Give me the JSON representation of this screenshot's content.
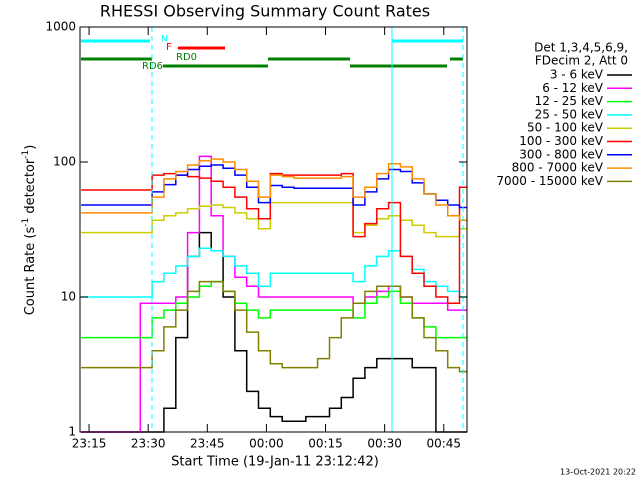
{
  "chart_data": {
    "type": "line",
    "title": "RHESSI Observing Summary Count Rates",
    "xlabel": "Start Time (19-Jan-11 23:12:42)",
    "ylabel": [
      "Count Rate (s",
      "-1",
      " detector",
      "-1",
      ")"
    ],
    "legend_header": [
      "Det 1,3,4,5,6,9,",
      "FDecim 2, Att 0"
    ],
    "flags": [
      "N",
      "F",
      "RD0",
      "RD6"
    ],
    "footer": "13-Oct-2021 20:22",
    "log_y": true,
    "xlim": [
      12.7,
      110.9
    ],
    "ylim": [
      1,
      1000
    ],
    "xticks": [
      {
        "value": 15,
        "label": "23:15"
      },
      {
        "value": 30,
        "label": "23:30"
      },
      {
        "value": 45,
        "label": "23:45"
      },
      {
        "value": 60,
        "label": "00:00"
      },
      {
        "value": 75,
        "label": "00:15"
      },
      {
        "value": 90,
        "label": "00:30"
      },
      {
        "value": 105,
        "label": "00:45"
      }
    ],
    "yticks": [
      1,
      10,
      100,
      1000
    ],
    "x": [
      13,
      16,
      19,
      22,
      25,
      28,
      31,
      34,
      37,
      40,
      43,
      46,
      49,
      52,
      55,
      58,
      61,
      64,
      67,
      70,
      73,
      76,
      79,
      82,
      85,
      88,
      91,
      94,
      97,
      100,
      103,
      106,
      109
    ],
    "series": [
      {
        "name": "3 - 6 keV",
        "color": "#000000",
        "values": [
          1,
          1,
          1,
          1,
          1,
          1,
          1,
          1.5,
          5,
          20,
          30,
          22,
          10,
          4,
          2,
          1.5,
          1.3,
          1.2,
          1.2,
          1.3,
          1.3,
          1.5,
          1.8,
          2.5,
          3,
          3.5,
          3.5,
          3.5,
          3,
          3,
          1,
          1,
          1
        ]
      },
      {
        "name": "6 - 12 keV",
        "color": "#ff00ff",
        "values": [
          1,
          1,
          1,
          1,
          1,
          9,
          9,
          9,
          10,
          30,
          110,
          40,
          20,
          14,
          12,
          10,
          10,
          10,
          10,
          10,
          10,
          10,
          10,
          9,
          10,
          11,
          12,
          10,
          9,
          9,
          9,
          8,
          8
        ]
      },
      {
        "name": "12 - 25 keV",
        "color": "#00ff00",
        "values": [
          5,
          5,
          5,
          5,
          5,
          5,
          7,
          8,
          9,
          10,
          12,
          13,
          11,
          9,
          8,
          7,
          8,
          8,
          8,
          8,
          8,
          8,
          8,
          7,
          9,
          10,
          11,
          9,
          7,
          6,
          5,
          5,
          5
        ]
      },
      {
        "name": "25 - 50 keV",
        "color": "#00ffff",
        "values": [
          10,
          10,
          10,
          10,
          10,
          10,
          13,
          15,
          17,
          20,
          23,
          22,
          20,
          17,
          15,
          12,
          15,
          15,
          15,
          15,
          15,
          15,
          15,
          13,
          17,
          20,
          22,
          20,
          16,
          13,
          12,
          11,
          10
        ]
      },
      {
        "name": "50 - 100 keV",
        "color": "#cccc00",
        "values": [
          30,
          30,
          30,
          30,
          30,
          30,
          37,
          40,
          42,
          45,
          47,
          48,
          46,
          42,
          38,
          32,
          50,
          50,
          50,
          50,
          50,
          50,
          50,
          30,
          34,
          38,
          40,
          37,
          34,
          30,
          28,
          28,
          32
        ]
      },
      {
        "name": "100 - 300 keV",
        "color": "#ff0000",
        "values": [
          62,
          62,
          62,
          62,
          62,
          62,
          80,
          82,
          80,
          78,
          76,
          72,
          65,
          55,
          45,
          38,
          82,
          80,
          80,
          80,
          80,
          80,
          82,
          28,
          35,
          45,
          50,
          20,
          15,
          12,
          10,
          9,
          65
        ]
      },
      {
        "name": "300 - 800 keV",
        "color": "#0000ff",
        "values": [
          48,
          48,
          48,
          48,
          48,
          48,
          60,
          68,
          80,
          88,
          93,
          95,
          90,
          80,
          65,
          50,
          67,
          65,
          64,
          64,
          64,
          64,
          64,
          48,
          60,
          75,
          88,
          85,
          70,
          58,
          52,
          48,
          46
        ]
      },
      {
        "name": "800 - 7000 keV",
        "color": "#ff8c00",
        "values": [
          42,
          42,
          42,
          42,
          42,
          42,
          55,
          75,
          85,
          95,
          102,
          105,
          100,
          88,
          72,
          55,
          80,
          78,
          76,
          76,
          76,
          76,
          78,
          55,
          65,
          82,
          97,
          92,
          75,
          58,
          48,
          40,
          37
        ]
      },
      {
        "name": "7000 - 15000 keV",
        "color": "#808000",
        "values": [
          3,
          3,
          3,
          3,
          3,
          3,
          4,
          6,
          8,
          11,
          13,
          13,
          11,
          8,
          5.5,
          4,
          3.2,
          3,
          3,
          3,
          3.5,
          5,
          7,
          9,
          11,
          12,
          12,
          10,
          7,
          5,
          4,
          3,
          2.8
        ]
      }
    ]
  }
}
